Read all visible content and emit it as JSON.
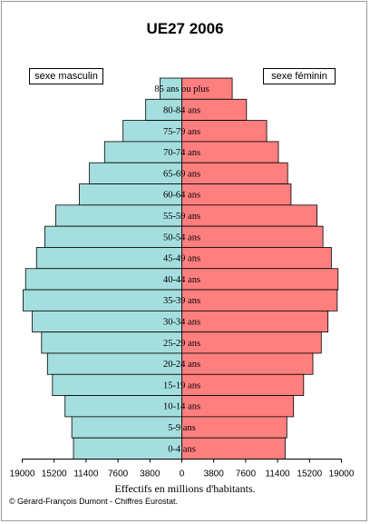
{
  "chart_data": {
    "type": "bar",
    "orientation": "horizontal-population-pyramid",
    "title": "UE27  2006",
    "xlabel": "Effectifs en millions  d'habitants.",
    "credit": "© Gérard-François Dumont - Chiffres Eurostat.",
    "categories": [
      "85 ans ou plus",
      "80-84 ans",
      "75-79 ans",
      "70-74 ans",
      "65-69 ans",
      "60-64 ans",
      "55-59 ans",
      "50-54 ans",
      "45-49 ans",
      "40-44 ans",
      "35-39 ans",
      "30-34 ans",
      "25-29 ans",
      "20-24 ans",
      "15-19 ans",
      "10-14 ans",
      "5-9 ans",
      "0-4 ans"
    ],
    "series": [
      {
        "name": "sexe masculin",
        "color": "#a5dede",
        "values": [
          2600,
          4300,
          7000,
          9200,
          11000,
          12200,
          15000,
          16300,
          17300,
          18600,
          18900,
          17800,
          16700,
          16000,
          15400,
          13900,
          13100,
          12900
        ]
      },
      {
        "name": "sexe féminin",
        "color": "#ff7f7f",
        "values": [
          6000,
          7700,
          10100,
          11500,
          12600,
          13000,
          16100,
          16800,
          17800,
          18600,
          18500,
          17400,
          16600,
          15600,
          14500,
          13300,
          12500,
          12300
        ]
      }
    ],
    "xticks": [
      "19000",
      "15200",
      "11400",
      "7600",
      "3800",
      "0",
      "3800",
      "7600",
      "11400",
      "15200",
      "19000"
    ],
    "xlim": [
      -19000,
      19000
    ],
    "legend": "top-left and top-right",
    "grid": false
  }
}
